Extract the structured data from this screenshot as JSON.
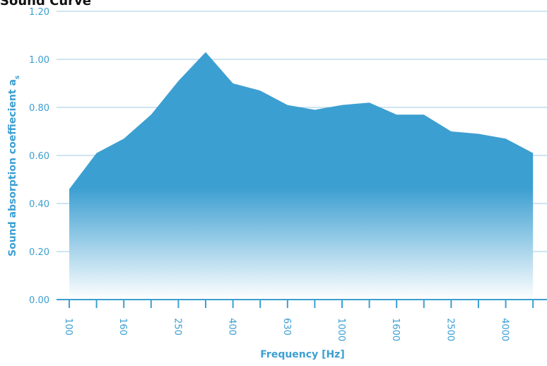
{
  "title": "Sound Curve",
  "colors": {
    "accent": "#3c9fd1",
    "grid": "#9ccbe3",
    "fill_top": "#3c9fd1",
    "fill_bottom": "#ffffff"
  },
  "chart_data": {
    "type": "area",
    "title": "Sound Curve",
    "xlabel": "Frequency [Hz]",
    "ylabel": "Sound absorption coeffiecient a",
    "ylabel_subscript": "s",
    "ylim": [
      0,
      1.2
    ],
    "yticks": [
      "0.00",
      "0.20",
      "0.40",
      "0.60",
      "0.80",
      "1.00",
      "1.20"
    ],
    "x_tick_labels": [
      "100",
      "160",
      "250",
      "400",
      "630",
      "1000",
      "1600",
      "2500",
      "4000"
    ],
    "x": [
      100,
      125,
      160,
      200,
      250,
      315,
      400,
      500,
      630,
      800,
      1000,
      1250,
      1600,
      2000,
      2500,
      3150,
      4000,
      5000
    ],
    "values": [
      0.46,
      0.61,
      0.67,
      0.77,
      0.91,
      1.03,
      0.9,
      0.87,
      0.81,
      0.79,
      0.81,
      0.82,
      0.77,
      0.77,
      0.7,
      0.69,
      0.67,
      0.61
    ],
    "grid": true
  }
}
